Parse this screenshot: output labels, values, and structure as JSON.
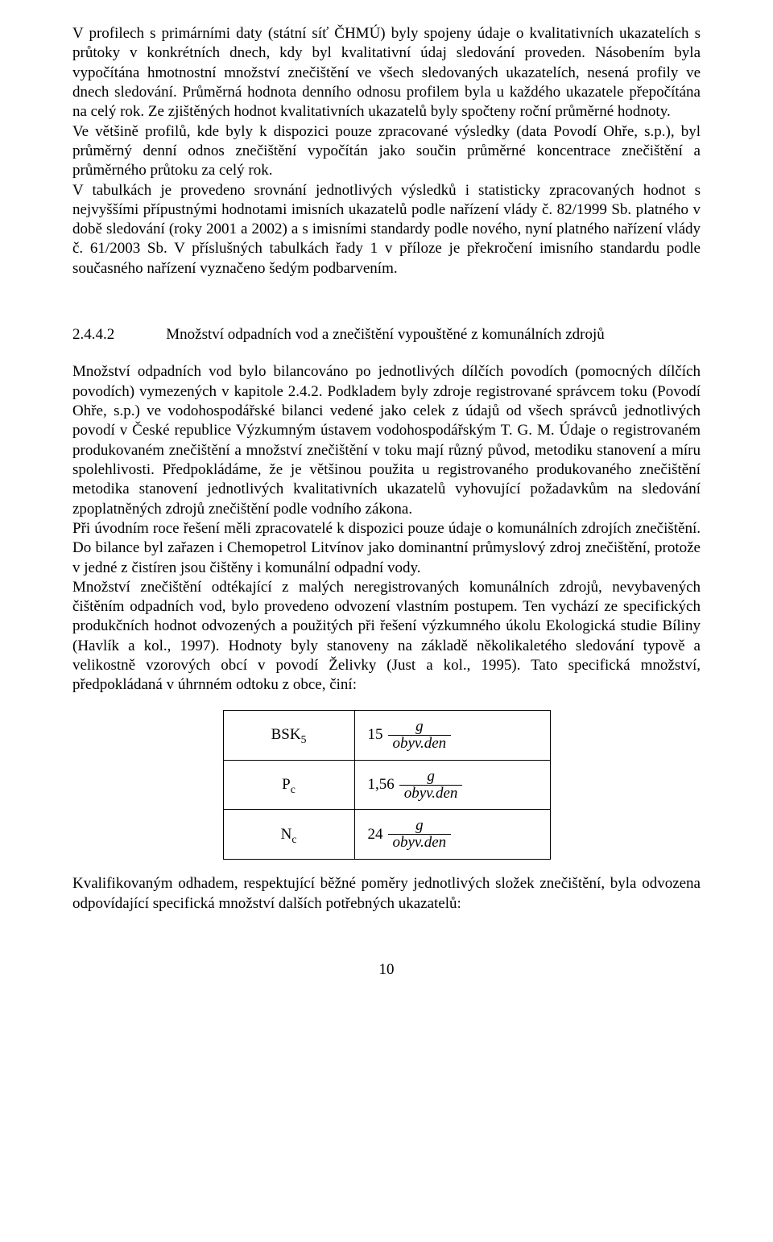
{
  "paragraphs": {
    "p1": "V profilech s primárními daty (státní síť ČHMÚ) byly spojeny údaje o kvalitativních ukazatelích s průtoky v konkrétních dnech, kdy byl kvalitativní údaj sledování proveden. Násobením byla vypočítána hmotnostní množství znečištění ve všech sledovaných ukazatelích, nesená profily ve dnech sledování. Průměrná hodnota denního odnosu profilem byla u každého ukazatele přepočítána na celý rok. Ze zjištěných hodnot kvalitativních ukazatelů byly spočteny roční průměrné hodnoty.",
    "p2": "Ve většině profilů, kde byly k dispozici pouze zpracované výsledky (data Povodí Ohře, s.p.), byl průměrný denní odnos znečištění vypočítán jako součin průměrné koncentrace znečištění a průměrného průtoku za celý rok.",
    "p3": "V tabulkách je provedeno srovnání jednotlivých výsledků i statisticky zpracovaných hodnot s nejvyššími přípustnými hodnotami imisních ukazatelů podle nařízení vlády č. 82/1999 Sb. platného v době sledování (roky 2001 a 2002) a s imisními standardy podle nového, nyní platného nařízení vlády č. 61/2003 Sb. V příslušných tabulkách řady 1 v příloze je překročení imisního standardu podle současného nařízení vyznačeno šedým podbarvením.",
    "p4": "Množství odpadních vod bylo bilancováno po jednotlivých dílčích povodích (pomocných dílčích povodích) vymezených v kapitole 2.4.2. Podkladem byly zdroje registrované správcem toku (Povodí Ohře, s.p.) ve vodohospodářské bilanci vedené jako celek z údajů od všech správců jednotlivých povodí v České republice Výzkumným ústavem vodohospodářským T. G. M. Údaje o registrovaném produkovaném znečištění a množství znečištění v toku mají různý původ, metodiku stanovení a míru spolehlivosti. Předpokládáme, že je většinou použita u registrovaného produkovaného znečištění metodika stanovení jednotlivých kvalitativních ukazatelů vyhovující požadavkům na sledování zpoplatněných zdrojů znečištění podle vodního zákona.",
    "p5": "Při úvodním roce řešení měli zpracovatelé k dispozici pouze údaje o komunálních zdrojích znečištění. Do bilance byl zařazen i Chemopetrol Litvínov jako dominantní průmyslový zdroj znečištění, protože v jedné z čistíren jsou čištěny i komunální odpadní vody.",
    "p6": "Množství znečištění odtékající z malých neregistrovaných komunálních zdrojů, nevybavených čištěním odpadních vod, bylo provedeno odvození vlastním postupem. Ten vychází ze specifických produkčních hodnot odvozených a použitých při řešení výzkumného úkolu Ekologická studie Bíliny (Havlík a kol., 1997). Hodnoty byly stanoveny na základě několikaletého sledování typově a velikostně vzorových obcí v povodí Želivky (Just a kol., 1995). Tato specifická množství, předpokládaná v úhrnném odtoku z obce, činí:",
    "p7": "Kvalifikovaným odhadem, respektující běžné poměry jednotlivých složek znečištění, byla odvozena odpovídající specifická množství dalších potřebných ukazatelů:"
  },
  "section": {
    "number": "2.4.4.2",
    "title": "Množství odpadních vod a znečištění vypouštěné z komunálních zdrojů"
  },
  "table": {
    "rows": [
      {
        "label_base": "BSK",
        "label_sub": "5",
        "coef": "15",
        "num": "g",
        "den": "obyv.den"
      },
      {
        "label_base": "P",
        "label_sub": "c",
        "coef": "1,56",
        "num": "g",
        "den": "obyv.den"
      },
      {
        "label_base": "N",
        "label_sub": "c",
        "coef": "24",
        "num": "g",
        "den": "obyv.den"
      }
    ]
  },
  "pageNumber": "10"
}
